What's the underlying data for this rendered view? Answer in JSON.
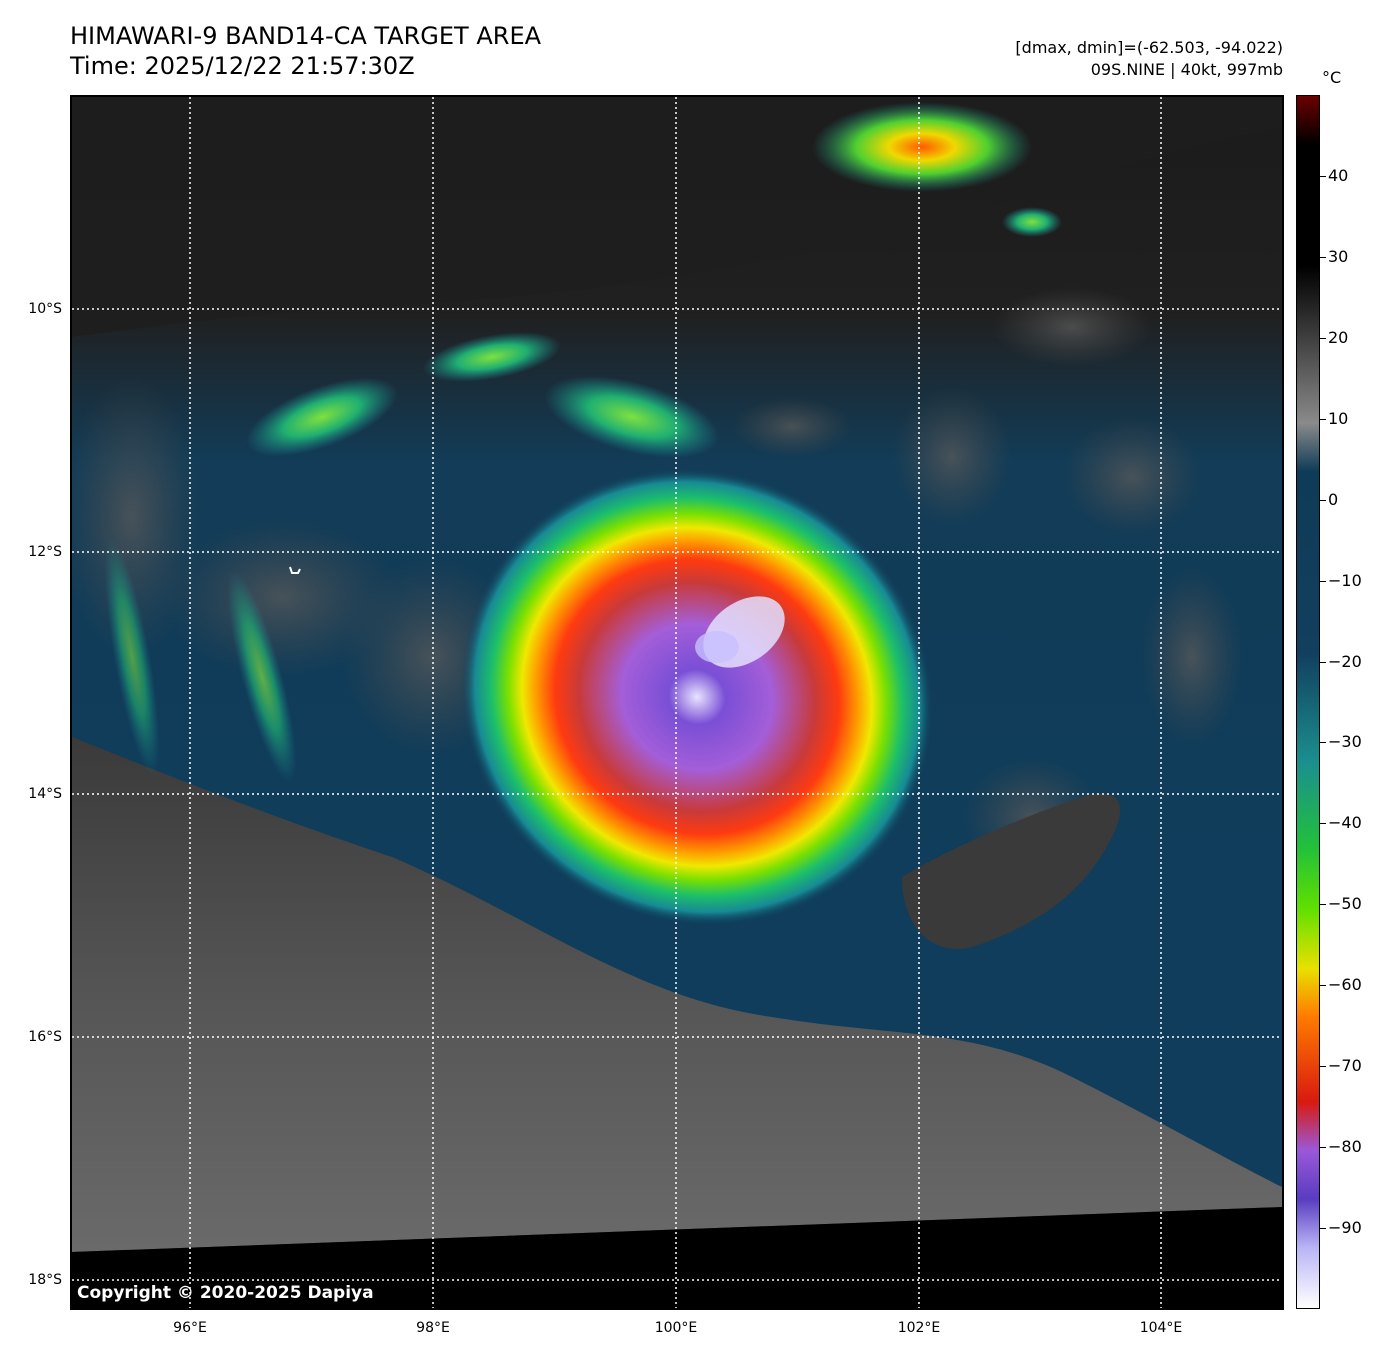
{
  "header": {
    "title_line1": "HIMAWARI-9 BAND14-CA TARGET AREA",
    "title_line2": "Time: 2025/12/22 21:57:30Z",
    "info_line1": "[dmax, dmin]=(-62.503, -94.022)",
    "info_line2": "09S.NINE | 40kt, 997mb"
  },
  "map": {
    "copyright": "Copyright © 2020-2025 Dapiya",
    "lat_labels": [
      "10°S",
      "12°S",
      "14°S",
      "16°S",
      "18°S"
    ],
    "lon_labels": [
      "96°E",
      "98°E",
      "100°E",
      "102°E",
      "104°E"
    ],
    "storm_name": "09S.NINE",
    "storm_center": {
      "lon": 100.5,
      "lat": -13.1
    }
  },
  "colorbar": {
    "unit": "°C",
    "ticks": [
      "40",
      "30",
      "20",
      "10",
      "0",
      "−10",
      "−20",
      "−30",
      "−40",
      "−50",
      "−60",
      "−70",
      "−80",
      "−90"
    ],
    "range": [
      -100,
      50
    ],
    "colors": {
      "hot": "#6b0000",
      "warm": "#000000",
      "cloud_gray": "#8a8a8a",
      "ocean_blue": "#0e3b57",
      "teal": "#1b8f8f",
      "green": "#22c03a",
      "yellow": "#e9e000",
      "orange": "#ff7a00",
      "red": "#d81a10",
      "purple": "#9a58d8",
      "violet": "#5a3cc0",
      "white": "#ffffff"
    }
  }
}
